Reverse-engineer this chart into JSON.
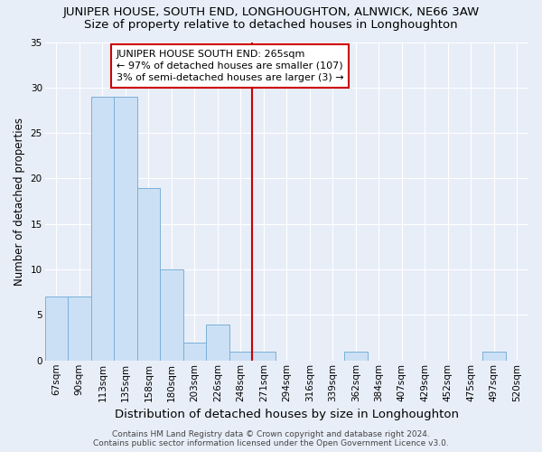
{
  "title": "JUNIPER HOUSE, SOUTH END, LONGHOUGHTON, ALNWICK, NE66 3AW",
  "subtitle": "Size of property relative to detached houses in Longhoughton",
  "xlabel": "Distribution of detached houses by size in Longhoughton",
  "ylabel": "Number of detached properties",
  "categories": [
    "67sqm",
    "90sqm",
    "113sqm",
    "135sqm",
    "158sqm",
    "180sqm",
    "203sqm",
    "226sqm",
    "248sqm",
    "271sqm",
    "294sqm",
    "316sqm",
    "339sqm",
    "362sqm",
    "384sqm",
    "407sqm",
    "429sqm",
    "452sqm",
    "475sqm",
    "497sqm",
    "520sqm"
  ],
  "values": [
    7,
    7,
    29,
    29,
    19,
    10,
    2,
    4,
    1,
    1,
    0,
    0,
    0,
    1,
    0,
    0,
    0,
    0,
    0,
    1,
    0
  ],
  "bar_color": "#cce0f5",
  "bar_edge_color": "#7ab0d8",
  "vline_x": 8.5,
  "vline_color": "#cc0000",
  "annotation_text": "JUNIPER HOUSE SOUTH END: 265sqm\n← 97% of detached houses are smaller (107)\n3% of semi-detached houses are larger (3) →",
  "annotation_box_color": "#ffffff",
  "annotation_box_edge_color": "#cc0000",
  "ylim": [
    0,
    35
  ],
  "yticks": [
    0,
    5,
    10,
    15,
    20,
    25,
    30,
    35
  ],
  "background_color": "#e8eef8",
  "plot_background_color": "#e8eef8",
  "title_fontsize": 9.5,
  "subtitle_fontsize": 9.5,
  "xlabel_fontsize": 9.5,
  "ylabel_fontsize": 8.5,
  "tick_fontsize": 7.5,
  "annotation_fontsize": 8,
  "footer_text": "Contains HM Land Registry data © Crown copyright and database right 2024.\nContains public sector information licensed under the Open Government Licence v3.0.",
  "footer_fontsize": 6.5
}
